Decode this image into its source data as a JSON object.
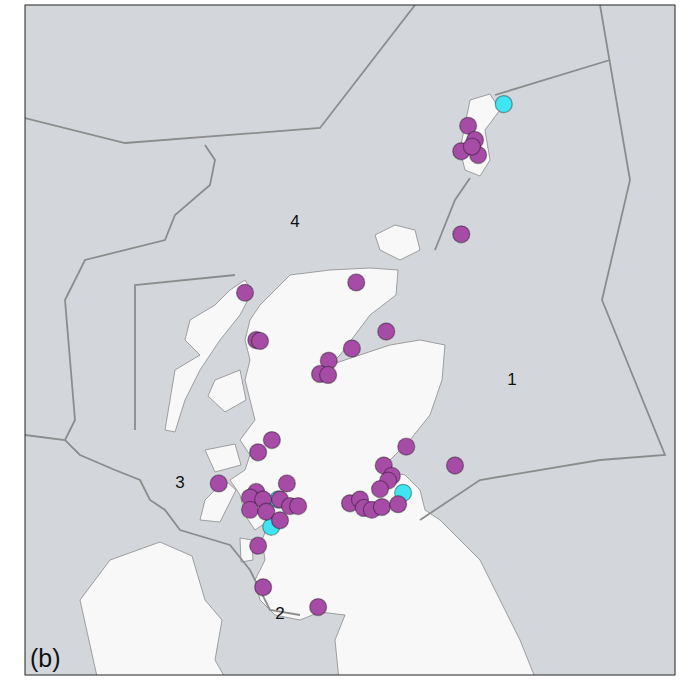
{
  "chart_data": {
    "type": "scatter",
    "title": "(b)",
    "annotations": [
      "1",
      "2",
      "3",
      "4"
    ],
    "xlim": [
      -8.6,
      1.8
    ],
    "ylim": [
      54.3,
      61.4
    ],
    "tick_labels": false,
    "grid": false,
    "series": [
      {
        "color": "#3fe5f2",
        "marker": "circle",
        "x": [
          -0.94,
          -4.55,
          -4.66,
          -2.55
        ],
        "y": [
          60.35,
          56.16,
          55.87,
          56.23
        ]
      },
      {
        "color": "#a64ca6",
        "marker": "circle",
        "x": [
          -1.51,
          -1.4,
          -1.62,
          -1.35,
          -1.45,
          -1.62,
          -3.3,
          -5.08,
          -2.82,
          -4.9,
          -4.84,
          -3.37,
          -3.74,
          -3.88,
          -3.75,
          -4.65,
          -4.87,
          -5.5,
          -4.41,
          -4.9,
          -5.0,
          -4.79,
          -5.0,
          -4.52,
          -4.36,
          -4.23,
          -4.74,
          -4.52,
          -4.87,
          -4.79,
          -3.91,
          -2.5,
          -1.72,
          -2.86,
          -2.73,
          -2.79,
          -2.92,
          -3.4,
          -3.24,
          -3.18,
          -3.05,
          -2.89,
          -2.63
        ],
        "y": [
          60.12,
          59.97,
          59.85,
          59.81,
          59.9,
          58.97,
          58.46,
          58.35,
          57.94,
          57.85,
          57.84,
          57.76,
          57.63,
          57.49,
          57.48,
          56.79,
          56.66,
          56.33,
          56.33,
          56.24,
          56.18,
          56.16,
          56.05,
          56.16,
          56.09,
          56.09,
          56.03,
          55.94,
          55.67,
          55.23,
          55.02,
          56.72,
          56.52,
          56.52,
          56.41,
          56.36,
          56.27,
          56.12,
          56.16,
          56.07,
          56.05,
          56.08,
          56.11
        ]
      }
    ]
  }
}
